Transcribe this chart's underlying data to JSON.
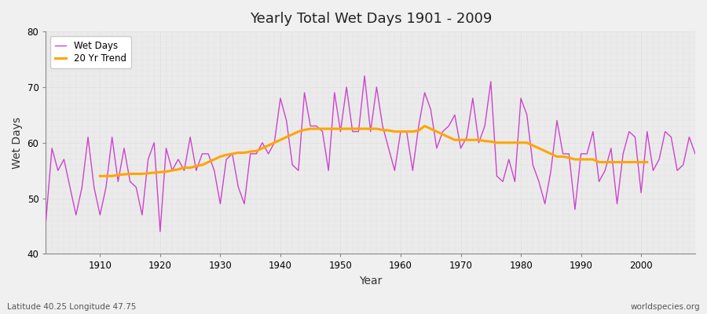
{
  "title": "Yearly Total Wet Days 1901 - 2009",
  "xlabel": "Year",
  "ylabel": "Wet Days",
  "lat_lon_label": "Latitude 40.25 Longitude 47.75",
  "source_label": "worldspecies.org",
  "xlim": [
    1901,
    2009
  ],
  "ylim": [
    40,
    80
  ],
  "yticks": [
    40,
    50,
    60,
    70,
    80
  ],
  "xticks": [
    1910,
    1920,
    1930,
    1940,
    1950,
    1960,
    1970,
    1980,
    1990,
    2000
  ],
  "wet_days_color": "#CC44CC",
  "trend_color": "#FFA500",
  "background_color": "#F0F0F0",
  "plot_bg_color": "#EBEBEB",
  "legend_wet": "Wet Days",
  "legend_trend": "20 Yr Trend",
  "years": [
    1901,
    1902,
    1903,
    1904,
    1905,
    1906,
    1907,
    1908,
    1909,
    1910,
    1911,
    1912,
    1913,
    1914,
    1915,
    1916,
    1917,
    1918,
    1919,
    1920,
    1921,
    1922,
    1923,
    1924,
    1925,
    1926,
    1927,
    1928,
    1929,
    1930,
    1931,
    1932,
    1933,
    1934,
    1935,
    1936,
    1937,
    1938,
    1939,
    1940,
    1941,
    1942,
    1943,
    1944,
    1945,
    1946,
    1947,
    1948,
    1949,
    1950,
    1951,
    1952,
    1953,
    1954,
    1955,
    1956,
    1957,
    1958,
    1959,
    1960,
    1961,
    1962,
    1963,
    1964,
    1965,
    1966,
    1967,
    1968,
    1969,
    1970,
    1971,
    1972,
    1973,
    1974,
    1975,
    1976,
    1977,
    1978,
    1979,
    1980,
    1981,
    1982,
    1983,
    1984,
    1985,
    1986,
    1987,
    1988,
    1989,
    1990,
    1991,
    1992,
    1993,
    1994,
    1995,
    1996,
    1997,
    1998,
    1999,
    2000,
    2001,
    2002,
    2003,
    2004,
    2005,
    2006,
    2007,
    2008,
    2009
  ],
  "wet_days": [
    46,
    59,
    55,
    57,
    52,
    47,
    52,
    61,
    52,
    47,
    52,
    61,
    53,
    59,
    53,
    52,
    47,
    57,
    60,
    44,
    59,
    55,
    57,
    55,
    61,
    55,
    58,
    58,
    55,
    49,
    57,
    58,
    52,
    49,
    58,
    58,
    60,
    58,
    60,
    68,
    64,
    56,
    55,
    69,
    63,
    63,
    62,
    55,
    69,
    62,
    70,
    62,
    62,
    72,
    62,
    70,
    63,
    59,
    55,
    62,
    62,
    55,
    63,
    69,
    66,
    59,
    62,
    63,
    65,
    59,
    61,
    68,
    60,
    63,
    71,
    54,
    53,
    57,
    53,
    68,
    65,
    56,
    53,
    49,
    55,
    64,
    58,
    58,
    48,
    58,
    58,
    62,
    53,
    55,
    59,
    49,
    58,
    62,
    61,
    51,
    62,
    55,
    57,
    62,
    61,
    55,
    56,
    61,
    58
  ],
  "trend": [
    null,
    null,
    null,
    null,
    null,
    null,
    null,
    null,
    null,
    54,
    54,
    54,
    54.2,
    54.3,
    54.4,
    54.4,
    54.4,
    54.5,
    54.6,
    54.7,
    54.8,
    55.0,
    55.2,
    55.5,
    55.5,
    55.8,
    56.0,
    56.5,
    57.0,
    57.5,
    57.8,
    58.0,
    58.2,
    58.2,
    58.4,
    58.5,
    59.0,
    59.5,
    60.0,
    60.5,
    61.0,
    61.5,
    62.0,
    62.3,
    62.5,
    62.5,
    62.5,
    62.5,
    62.5,
    62.5,
    62.5,
    62.5,
    62.5,
    62.5,
    62.5,
    62.5,
    62.3,
    62.2,
    62.0,
    62.0,
    62.0,
    62.0,
    62.2,
    63.0,
    62.5,
    62.0,
    61.5,
    61.0,
    60.5,
    60.5,
    60.5,
    60.5,
    60.5,
    60.3,
    60.2,
    60.0,
    60.0,
    60.0,
    60.0,
    60.0,
    60.0,
    59.5,
    59.0,
    58.5,
    58.0,
    57.5,
    57.5,
    57.3,
    57.0,
    57.0,
    57.0,
    57.0,
    56.5,
    56.5,
    56.5,
    56.5,
    56.5,
    56.5,
    56.5,
    56.5,
    56.5,
    null,
    null,
    null,
    null,
    null,
    null,
    null,
    null
  ]
}
